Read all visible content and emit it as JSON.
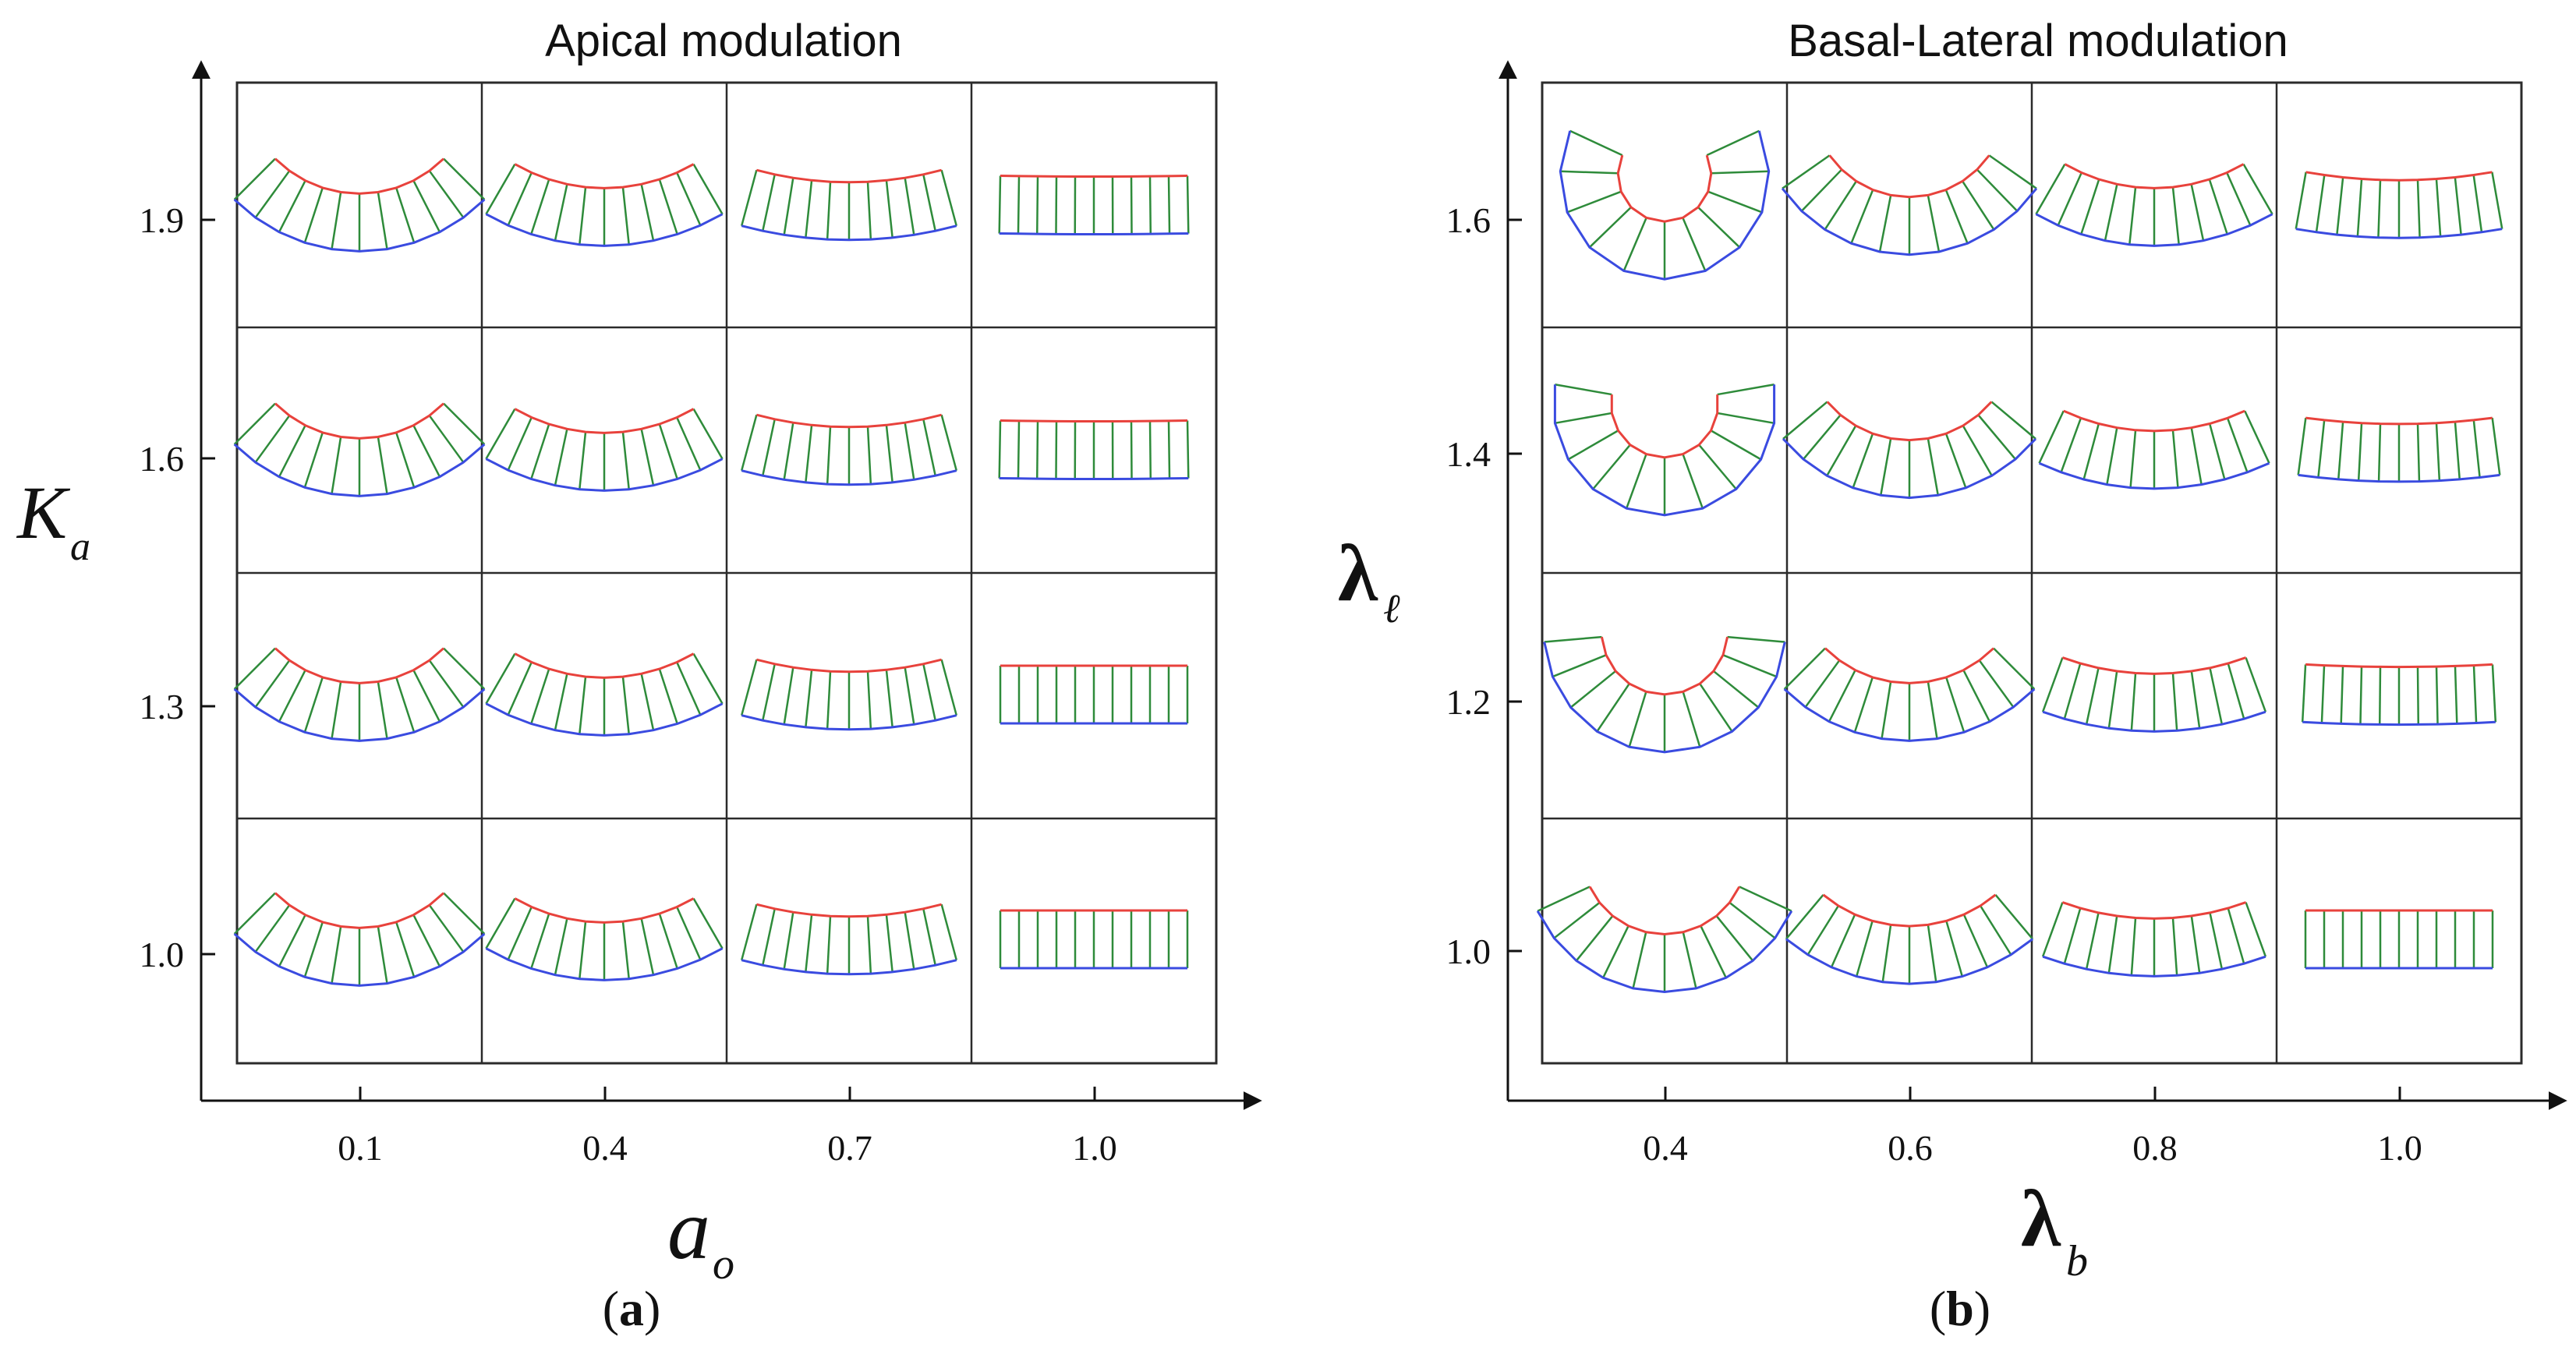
{
  "figure": {
    "panels": [
      {
        "id": "a",
        "title": "Apical modulation",
        "caption_letter": "a",
        "x_axis": {
          "symbol": "a",
          "subscript": "o",
          "ticks": [
            "0.1",
            "0.4",
            "0.7",
            "1.0"
          ]
        },
        "y_axis": {
          "symbol": "K",
          "subscript": "a",
          "ticks": [
            "1.0",
            "1.3",
            "1.6",
            "1.9"
          ]
        },
        "tissue_grid": {
          "description_rows_bottom_to_top": "K_a = 1.0, 1.3, 1.6, 1.9",
          "columns_left_to_right": "a_o = 0.1, 0.4, 0.7, 1.0",
          "shape_kind": "arc",
          "cells_per_tissue": 10,
          "bend_degrees": [
            [
              90,
              60,
              30,
              0
            ],
            [
              90,
              60,
              30,
              0
            ],
            [
              90,
              60,
              30,
              2
            ],
            [
              90,
              60,
              30,
              2
            ]
          ]
        }
      },
      {
        "id": "b",
        "title": "Basal-Lateral modulation",
        "caption_letter": "b",
        "x_axis": {
          "symbol": "λ",
          "subscript": "b",
          "ticks": [
            "0.4",
            "0.6",
            "0.8",
            "1.0"
          ]
        },
        "y_axis": {
          "symbol": "λ",
          "subscript": "ℓ",
          "ticks": [
            "1.0",
            "1.2",
            "1.4",
            "1.6"
          ]
        },
        "tissue_grid": {
          "description_rows_bottom_to_top": "λ_ℓ = 1.0, 1.2, 1.4, 1.6",
          "columns_left_to_right": "λ_b = 0.4, 0.6, 0.8, 1.0",
          "shape_kind": "arc",
          "cells_per_tissue": 10,
          "bend_degrees": [
            [
              130,
              80,
              40,
              0
            ],
            [
              170,
              90,
              40,
              6
            ],
            [
              200,
              100,
              50,
              15
            ],
            [
              230,
              110,
              60,
              20
            ]
          ]
        }
      }
    ],
    "colors": {
      "apical": "#e8423c",
      "basal": "#3a4be0",
      "lateral": "#2e8b3a",
      "grid": "#2b2b2b",
      "axis": "#111111"
    }
  }
}
